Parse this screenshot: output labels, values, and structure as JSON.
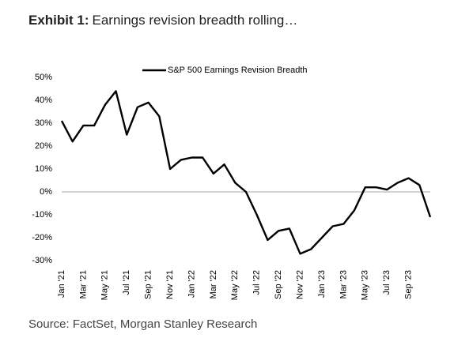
{
  "chart_data": {
    "type": "line",
    "exhibit": "Exhibit 1:",
    "title": "Earnings revision breadth rolling…",
    "source": "Source: FactSet, Morgan Stanley Research",
    "x": [
      "2021-01",
      "2021-02",
      "2021-03",
      "2021-04",
      "2021-05",
      "2021-06",
      "2021-07",
      "2021-08",
      "2021-09",
      "2021-10",
      "2021-11",
      "2021-12",
      "2022-01",
      "2022-02",
      "2022-03",
      "2022-04",
      "2022-05",
      "2022-06",
      "2022-07",
      "2022-08",
      "2022-09",
      "2022-10",
      "2022-11",
      "2022-12",
      "2023-01",
      "2023-02",
      "2023-03",
      "2023-04",
      "2023-05",
      "2023-06",
      "2023-07",
      "2023-08",
      "2023-09",
      "2023-10",
      "2023-11"
    ],
    "series": [
      {
        "name": "S&P 500 Earnings Revision Breadth",
        "color": "#000000",
        "values": [
          31,
          22,
          29,
          29,
          38,
          44,
          25,
          37,
          39,
          33,
          10,
          14,
          15,
          15,
          8,
          12,
          4,
          0,
          -10,
          -21,
          -17,
          -16,
          -27,
          -25,
          -20,
          -15,
          -14,
          -8,
          2,
          2,
          1,
          4,
          6,
          3,
          -11
        ]
      }
    ],
    "xlim": [
      "2021-01",
      "2023-11"
    ],
    "xticks": [
      {
        "value": "2021-01",
        "label": "Jan '21"
      },
      {
        "value": "2021-03",
        "label": "Mar '21"
      },
      {
        "value": "2021-05",
        "label": "May '21"
      },
      {
        "value": "2021-07",
        "label": "Jul '21"
      },
      {
        "value": "2021-09",
        "label": "Sep '21"
      },
      {
        "value": "2021-11",
        "label": "Nov '21"
      },
      {
        "value": "2022-01",
        "label": "Jan '22"
      },
      {
        "value": "2022-03",
        "label": "Mar '22"
      },
      {
        "value": "2022-05",
        "label": "May '22"
      },
      {
        "value": "2022-07",
        "label": "Jul '22"
      },
      {
        "value": "2022-09",
        "label": "Sep '22"
      },
      {
        "value": "2022-11",
        "label": "Nov '22"
      },
      {
        "value": "2023-01",
        "label": "Jan '23"
      },
      {
        "value": "2023-03",
        "label": "Mar '23"
      },
      {
        "value": "2023-05",
        "label": "May '23"
      },
      {
        "value": "2023-07",
        "label": "Jul '23"
      },
      {
        "value": "2023-09",
        "label": "Sep '23"
      }
    ],
    "ylim": [
      -30,
      50
    ],
    "yticks": [
      {
        "value": -30,
        "label": "-30%"
      },
      {
        "value": -20,
        "label": "-20%"
      },
      {
        "value": -10,
        "label": "-10%"
      },
      {
        "value": 0,
        "label": "0%"
      },
      {
        "value": 10,
        "label": "10%"
      },
      {
        "value": 20,
        "label": "20%"
      },
      {
        "value": 30,
        "label": "30%"
      },
      {
        "value": 40,
        "label": "40%"
      },
      {
        "value": 50,
        "label": "50%"
      }
    ],
    "grid": false
  }
}
